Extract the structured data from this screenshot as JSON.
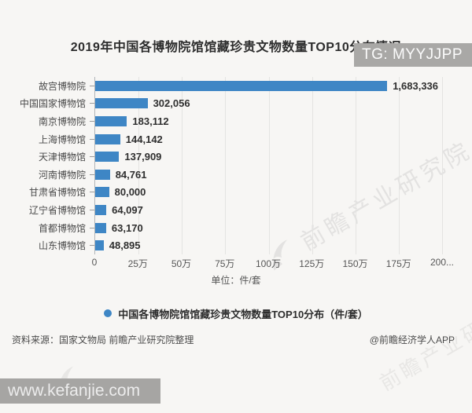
{
  "badges": {
    "top_right": "TG: MYYJJPP",
    "bottom_left": "www.kefanjie.com"
  },
  "title": "2019年中国各博物院馆馆藏珍贵文物数量TOP10分布情况",
  "chart_data": {
    "type": "bar",
    "orientation": "horizontal",
    "title": "2019年中国各博物院馆馆藏珍贵文物数量TOP10分布情况",
    "categories": [
      "故宫博物院",
      "中国国家博物馆",
      "南京博物院",
      "上海博物馆",
      "天津博物馆",
      "河南博物院",
      "甘肃省博物馆",
      "辽宁省博物馆",
      "首都博物馆",
      "山东博物馆"
    ],
    "values": [
      1683336,
      302056,
      183112,
      144142,
      137909,
      84761,
      80000,
      64097,
      63170,
      48895
    ],
    "value_labels": [
      "1,683,336",
      "302,056",
      "183,112",
      "144,142",
      "137,909",
      "84,761",
      "80,000",
      "64,097",
      "63,170",
      "48,895"
    ],
    "x_ticks": [
      "0",
      "25万",
      "50万",
      "75万",
      "100万",
      "125万",
      "150万",
      "175万",
      "200..."
    ],
    "x_max": 2000000,
    "xlabel": "单位：件/套",
    "ylabel": "",
    "grid": true,
    "legend": "中国各博物院馆馆藏珍贵文物数量TOP10分布（件/套）",
    "legend_position": "bottom",
    "bar_color": "#3e86c5"
  },
  "footer": {
    "source": "资料来源：国家文物局 前瞻产业研究院整理",
    "credit": "@前瞻经济学人APP"
  },
  "watermark": {
    "diagonal_text": "前瞻产业研究院"
  },
  "colors": {
    "bar": "#3e86c5",
    "badge_bg": "#a9a8a6",
    "background": "#f7f6f4"
  }
}
